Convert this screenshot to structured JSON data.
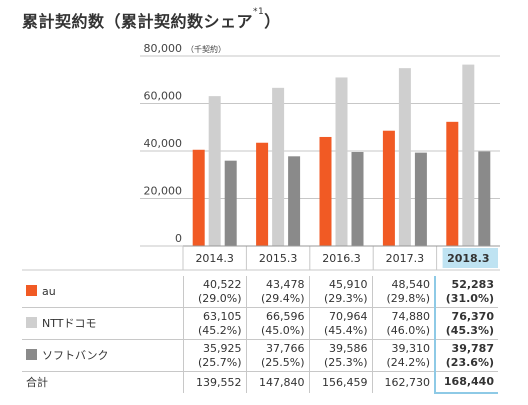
{
  "title": "累計契約数（累計契約数シェア",
  "title_note": "*1",
  "title_close": "）",
  "colors": {
    "au": "#f15a24",
    "docomo": "#cfcfcf",
    "softbank": "#8a8a8a",
    "highlight": "#bfe3f2",
    "highlight_border": "#8ecae6",
    "axis": "#999999"
  },
  "chart_data": {
    "type": "bar",
    "unit_label": "（千契約）",
    "categories": [
      "2014.3",
      "2015.3",
      "2016.3",
      "2017.3",
      "2018.3"
    ],
    "highlight_category": "2018.3",
    "ylim": [
      0,
      80000
    ],
    "yticks": [
      "0",
      "20,000",
      "40,000",
      "60,000",
      "80,000"
    ],
    "ytick_values": [
      0,
      20000,
      40000,
      60000,
      80000
    ],
    "grid": true,
    "series": [
      {
        "name": "au",
        "color": "#f15a24",
        "values": [
          40522,
          43478,
          45910,
          48540,
          52283
        ]
      },
      {
        "name": "NTT ドコモ",
        "color": "#cfcfcf",
        "values": [
          63105,
          66596,
          70964,
          74880,
          76370
        ]
      },
      {
        "name": "ソフトバンク",
        "color": "#8a8a8a",
        "values": [
          35925,
          37766,
          39586,
          39310,
          39787
        ]
      }
    ]
  },
  "table": {
    "rows": [
      {
        "label": "au",
        "color": "#f15a24",
        "values": [
          "40,522",
          "43,478",
          "45,910",
          "48,540",
          "52,283"
        ],
        "shares": [
          "(29.0%)",
          "(29.4%)",
          "(29.3%)",
          "(29.8%)",
          "(31.0%)"
        ]
      },
      {
        "label": "NTTドコモ",
        "color": "#cfcfcf",
        "values": [
          "63,105",
          "66,596",
          "70,964",
          "74,880",
          "76,370"
        ],
        "shares": [
          "(45.2%)",
          "(45.0%)",
          "(45.4%)",
          "(46.0%)",
          "(45.3%)"
        ]
      },
      {
        "label": "ソフトバンク",
        "color": "#8a8a8a",
        "values": [
          "35,925",
          "37,766",
          "39,586",
          "39,310",
          "39,787"
        ],
        "shares": [
          "(25.7%)",
          "(25.5%)",
          "(25.3%)",
          "(24.2%)",
          "(23.6%)"
        ]
      }
    ],
    "total": {
      "label": "合計",
      "values": [
        "139,552",
        "147,840",
        "156,459",
        "162,730",
        "168,440"
      ]
    }
  }
}
